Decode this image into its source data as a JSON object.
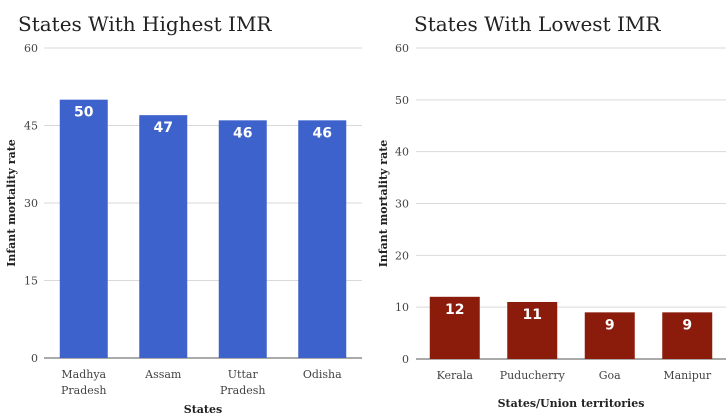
{
  "chart_data": [
    {
      "type": "bar",
      "title": "States With Highest IMR",
      "xlabel": "States",
      "ylabel": "Infant mortality rate",
      "categories": [
        [
          "Madhya",
          "Pradesh"
        ],
        [
          "Assam"
        ],
        [
          "Uttar",
          "Pradesh"
        ],
        [
          "Odisha"
        ]
      ],
      "values": [
        50,
        47,
        46,
        46
      ],
      "ylim": [
        0,
        60
      ],
      "yticks": [
        0,
        15,
        30,
        45,
        60
      ],
      "grid": true,
      "color": "#3d62cc"
    },
    {
      "type": "bar",
      "title": "States With Lowest IMR",
      "xlabel": "States/Union territories",
      "ylabel": "Infant mortality rate",
      "categories": [
        [
          "Kerala"
        ],
        [
          "Puducherry"
        ],
        [
          "Goa"
        ],
        [
          "Manipur"
        ]
      ],
      "values": [
        12,
        11,
        9,
        9
      ],
      "ylim": [
        0,
        60
      ],
      "yticks": [
        0,
        10,
        20,
        30,
        40,
        50,
        60
      ],
      "grid": true,
      "color": "#8b1c0c"
    }
  ]
}
